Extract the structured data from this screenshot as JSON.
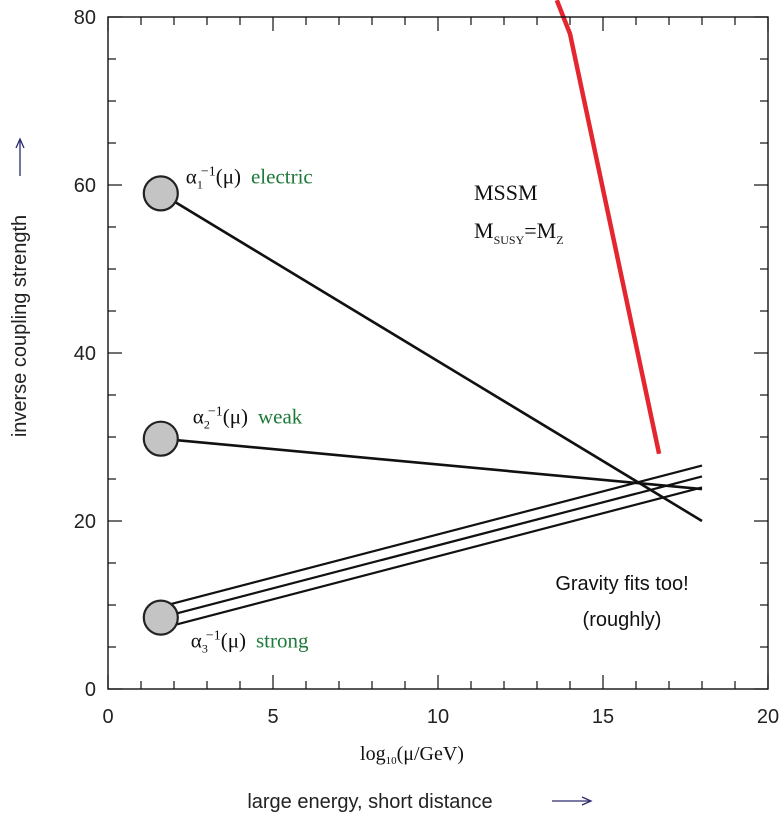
{
  "chart_data": {
    "type": "line",
    "xlabel": "log",
    "xlabel_sub": "10",
    "xlabel_rest": "(μ/GeV)",
    "ylabel": "inverse coupling strength",
    "energy_label": "large energy, short distance",
    "xlim": [
      0,
      20
    ],
    "ylim": [
      0,
      80
    ],
    "x_ticks": [
      "0",
      "5",
      "10",
      "15",
      "20"
    ],
    "y_ticks": [
      "0",
      "20",
      "40",
      "60",
      "80"
    ],
    "series": [
      {
        "id": "a1",
        "greek": "α",
        "sub": "1",
        "sup": "−1",
        "arg": "(μ)",
        "word": "electric",
        "x": [
          1.6,
          18
        ],
        "y": [
          59,
          20
        ]
      },
      {
        "id": "a2",
        "greek": "α",
        "sub": "2",
        "sup": "−1",
        "arg": "(μ)",
        "word": "weak",
        "x": [
          1.6,
          18
        ],
        "y": [
          29.8,
          23.8
        ]
      },
      {
        "id": "a3",
        "greek": "α",
        "sub": "3",
        "sup": "−1",
        "arg": "(μ)",
        "word": "strong",
        "x": [
          1.6,
          18
        ],
        "y": [
          8.5,
          25.3
        ],
        "band_offset": 1.3
      },
      {
        "id": "gravity",
        "x": [
          13.6,
          14,
          16.7
        ],
        "y": [
          82,
          78,
          28
        ],
        "color": "#e3262f"
      }
    ],
    "annotations": {
      "model": "MSSM",
      "msusy_main": "M",
      "msusy_sub": "SUSY",
      "msusy_eq": "=M",
      "msusy_sub2": "Z",
      "gravity_line1": "Gravity fits too!",
      "gravity_line2": "(roughly)"
    },
    "colors": {
      "line": "#111111",
      "gravity": "#e3262f",
      "label_word": "#1e7a3a",
      "marker_fill": "#c4c4c4",
      "arrow": "#2b2b6e"
    }
  }
}
